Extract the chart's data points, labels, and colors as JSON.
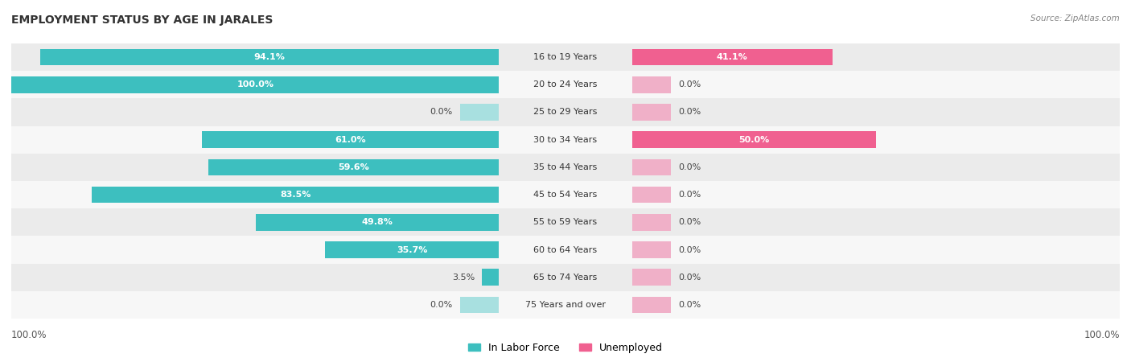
{
  "title": "EMPLOYMENT STATUS BY AGE IN JARALES",
  "source": "Source: ZipAtlas.com",
  "categories": [
    "16 to 19 Years",
    "20 to 24 Years",
    "25 to 29 Years",
    "30 to 34 Years",
    "35 to 44 Years",
    "45 to 54 Years",
    "55 to 59 Years",
    "60 to 64 Years",
    "65 to 74 Years",
    "75 Years and over"
  ],
  "labor_force": [
    94.1,
    100.0,
    0.0,
    61.0,
    59.6,
    83.5,
    49.8,
    35.7,
    3.5,
    0.0
  ],
  "unemployed": [
    41.1,
    0.0,
    0.0,
    50.0,
    0.0,
    0.0,
    0.0,
    0.0,
    0.0,
    0.0
  ],
  "labor_force_color": "#3dbfbf",
  "labor_force_color_light": "#a8e0e0",
  "unemployed_color": "#f06090",
  "unemployed_color_light": "#f0b0c8",
  "row_color_odd": "#ebebeb",
  "row_color_even": "#f7f7f7",
  "axis_label_left": "100.0%",
  "axis_label_right": "100.0%",
  "legend_labor": "In Labor Force",
  "legend_unemployed": "Unemployed",
  "max_val": 100.0,
  "title_fontsize": 10,
  "label_fontsize": 8,
  "category_fontsize": 8,
  "stub_size": 8.0
}
